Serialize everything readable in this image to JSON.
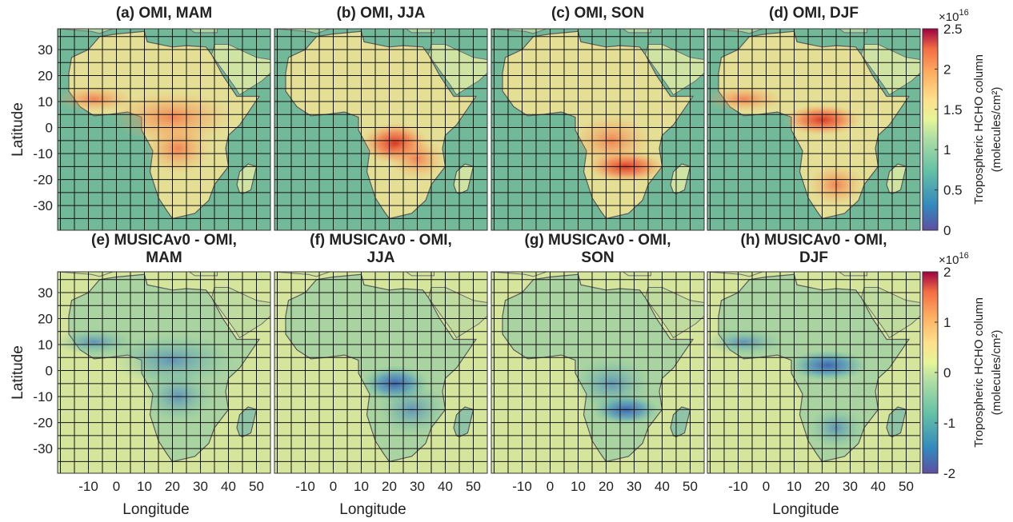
{
  "figure": {
    "xlim": [
      -21,
      55
    ],
    "ylim": [
      -39.5,
      38
    ],
    "xticks": [
      -10,
      0,
      10,
      20,
      30,
      40,
      50
    ],
    "yticks": [
      -30,
      -20,
      -10,
      0,
      10,
      20,
      30
    ],
    "xlabel": "Longitude",
    "ylabel": "Latitude",
    "grid": true,
    "grid_spacing": 5,
    "rows": [
      {
        "panels": [
          {
            "title": [
              "(a) OMI, MAM"
            ],
            "ylabel": true
          },
          {
            "title": [
              "(b) OMI, JJA"
            ]
          },
          {
            "title": [
              "(c) OMI, SON"
            ]
          },
          {
            "title": [
              "(d) OMI, DJF"
            ]
          }
        ],
        "colorbar": {
          "label": "Tropospheric HCHO column",
          "unit": "(molecules/cm²)",
          "exponent_base": "×10",
          "exponent": "16",
          "lim": [
            0,
            2.5
          ],
          "ticks": [
            0,
            0.5,
            1,
            1.5,
            2,
            2.5
          ]
        }
      },
      {
        "panels": [
          {
            "title": [
              "(e) MUSICAv0 - OMI,",
              "MAM"
            ],
            "ylabel": true,
            "xticks": true,
            "xlabel": true
          },
          {
            "title": [
              "(f) MUSICAv0 - OMI,",
              "JJA"
            ],
            "xticks": true,
            "xlabel": true
          },
          {
            "title": [
              "(g) MUSICAv0 - OMI,",
              "SON"
            ],
            "xticks": true
          },
          {
            "title": [
              "(h) MUSICAv0 - OMI,",
              "DJF"
            ],
            "xticks": true,
            "xlabel": true
          }
        ],
        "colorbar": {
          "label": "Tropospheric HCHO column",
          "unit": "(molecules/cm²)",
          "exponent_base": "×10",
          "exponent": "16",
          "lim": [
            -2,
            2
          ],
          "ticks": [
            -2,
            -1,
            0,
            1,
            2
          ]
        }
      }
    ]
  }
}
